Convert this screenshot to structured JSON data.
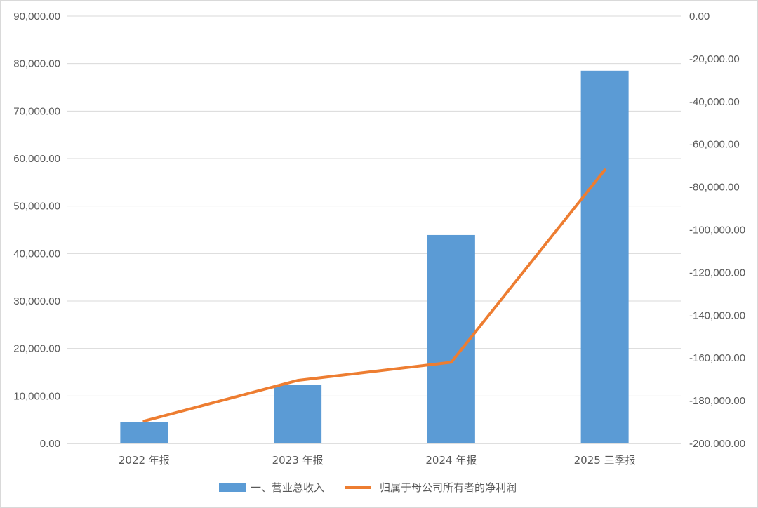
{
  "chart_data": {
    "type": "bar",
    "categories": [
      "2022 年报",
      "2023 年报",
      "2024 年报",
      "2025 三季报"
    ],
    "series": [
      {
        "name": "一、营业总收入",
        "type": "bar",
        "axis": "left",
        "color": "#5B9BD5",
        "values": [
          4500,
          12300,
          43900,
          78500
        ]
      },
      {
        "name": "归属于母公司所有者的净利润",
        "type": "line",
        "axis": "right",
        "color": "#ED7D31",
        "values": [
          -189500,
          -170500,
          -162000,
          -72000
        ]
      }
    ],
    "y_left": {
      "ylim": [
        0,
        90000
      ],
      "ticks": [
        "0.00",
        "10,000.00",
        "20,000.00",
        "30,000.00",
        "40,000.00",
        "50,000.00",
        "60,000.00",
        "70,000.00",
        "80,000.00",
        "90,000.00"
      ]
    },
    "y_right": {
      "ylim": [
        -200000,
        0
      ],
      "ticks": [
        "-200,000.00",
        "-180,000.00",
        "-160,000.00",
        "-140,000.00",
        "-120,000.00",
        "-100,000.00",
        "-80,000.00",
        "-60,000.00",
        "-40,000.00",
        "-20,000.00",
        "0.00"
      ]
    },
    "grid": true,
    "legend": "bottom-center"
  }
}
